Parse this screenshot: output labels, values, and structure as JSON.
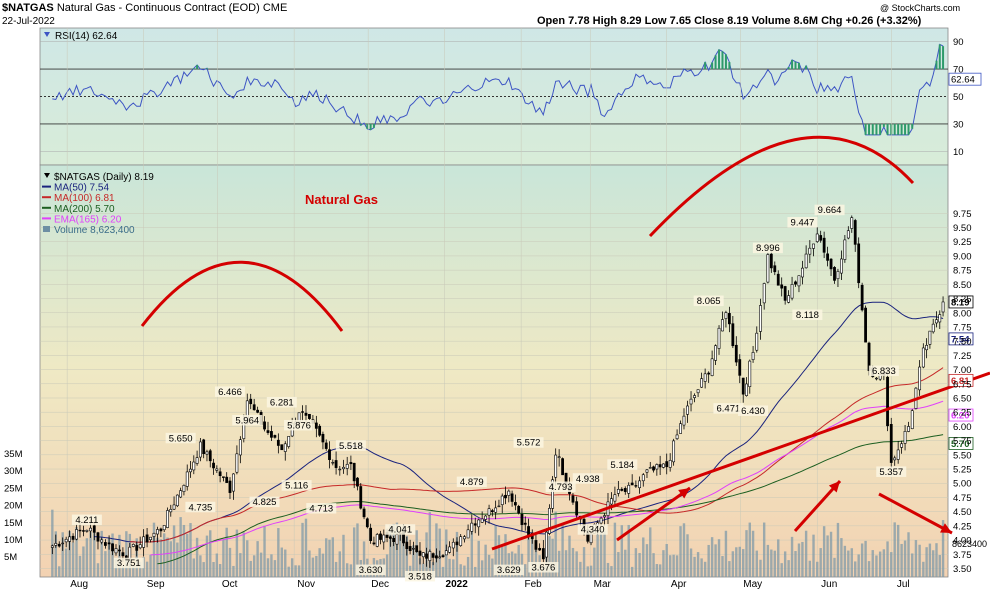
{
  "header": {
    "symbol": "$NATGAS",
    "title_rest": "Natural Gas - Continuous Contract (EOD)",
    "exchange": "CME",
    "date": "22-Jul-2022",
    "copyright": "@ StockCharts.com",
    "quote": "Open 7.78  High 8.29  Low 7.65  Close 8.19  Volume 8.6M  Chg +0.26 (+3.32%)",
    "quote_color": "#000000"
  },
  "rsi_panel": {
    "legend": "RSI(14) 62.64",
    "levels": [
      90,
      70,
      50,
      30,
      10
    ],
    "level_labels": [
      "90",
      "70",
      "50",
      "30",
      "10"
    ],
    "last_label": "62.64",
    "ylim": [
      0,
      100
    ]
  },
  "price_panel": {
    "legend": [
      {
        "text": "$NATGAS (Daily) 8.19",
        "color": "#000000",
        "marker": "triangle"
      },
      {
        "text": "MA(50) 7.54",
        "color": "#1a237e",
        "marker": "line"
      },
      {
        "text": "MA(100) 6.81",
        "color": "#c62828",
        "marker": "line"
      },
      {
        "text": "MA(200) 5.70",
        "color": "#1b5e20",
        "marker": "line"
      },
      {
        "text": "EMA(165) 6.20",
        "color": "#e040fb",
        "marker": "line"
      },
      {
        "text": "Volume 8,623,400",
        "color": "#6d8fa3",
        "marker": "box"
      }
    ],
    "annotation": "Natural Gas",
    "annotation_color": "#d40000",
    "y_ticks": [
      "9.75",
      "9.50",
      "9.25",
      "9.00",
      "8.75",
      "8.50",
      "8.25",
      "8.00",
      "7.75",
      "7.50",
      "7.25",
      "7.00",
      "6.75",
      "6.50",
      "6.25",
      "6.00",
      "5.75",
      "5.50",
      "5.25",
      "5.00",
      "4.75",
      "4.50",
      "4.25",
      "4.00",
      "3.75",
      "3.50"
    ],
    "last_labels": [
      {
        "text": "8.19",
        "color": "#000000"
      },
      {
        "text": "7.54",
        "color": "#1a237e"
      },
      {
        "text": "6.81",
        "color": "#c62828"
      },
      {
        "text": "6.20",
        "color": "#e040fb"
      },
      {
        "text": "5.70",
        "color": "#1b5e20"
      }
    ],
    "volume_ticks": [
      "35M",
      "30M",
      "25M",
      "20M",
      "15M",
      "10M",
      "5M"
    ],
    "volume_last": "8623400",
    "x_ticks": [
      "Aug",
      "Sep",
      "Oct",
      "Nov",
      "Dec",
      "2022",
      "Feb",
      "Mar",
      "Apr",
      "May",
      "Jun",
      "Jul"
    ]
  },
  "chart_data": {
    "type": "line",
    "title": "Natural Gas - Continuous Contract (EOD)",
    "xlabel": "",
    "ylabel": "",
    "ylim": [
      3.35,
      10.6
    ],
    "x": [
      "2021-07-26",
      "2021-08-09",
      "2021-08-18",
      "2021-08-25",
      "2021-09-08",
      "2021-09-16",
      "2021-09-24",
      "2021-10-06",
      "2021-10-13",
      "2021-10-20",
      "2021-10-27",
      "2021-11-03",
      "2021-11-10",
      "2021-11-18",
      "2021-11-24",
      "2021-12-02",
      "2021-12-14",
      "2021-12-22",
      "2022-01-03",
      "2022-01-12",
      "2022-01-19",
      "2022-01-27",
      "2022-02-04",
      "2022-02-10",
      "2022-02-15",
      "2022-02-22",
      "2022-02-28",
      "2022-03-04",
      "2022-03-11",
      "2022-03-18",
      "2022-03-24",
      "2022-04-01",
      "2022-04-08",
      "2022-04-18",
      "2022-04-25",
      "2022-05-02",
      "2022-05-06",
      "2022-05-12",
      "2022-05-19",
      "2022-05-26",
      "2022-06-01",
      "2022-06-08",
      "2022-06-15",
      "2022-06-22",
      "2022-06-28",
      "2022-07-01",
      "2022-07-08",
      "2022-07-14",
      "2022-07-22"
    ],
    "series": [
      {
        "values": [
          3.9,
          4.211,
          3.9,
          3.751,
          4.2,
          4.9,
          5.65,
          4.9,
          6.466,
          5.964,
          5.6,
          6.281,
          5.9,
          5.3,
          5.3,
          4.0,
          4.05,
          3.7,
          3.82,
          4.3,
          4.5,
          4.879,
          4.1,
          3.629,
          5.572,
          4.7,
          4.0,
          4.3,
          4.8,
          4.9,
          5.184,
          5.3,
          6.2,
          7.0,
          8.065,
          6.6,
          7.3,
          8.996,
          8.2,
          8.8,
          9.447,
          8.6,
          9.664,
          7.0,
          6.833,
          5.357,
          6.0,
          7.3,
          8.19
        ]
      }
    ],
    "annotations": [
      "4.211",
      "3.751",
      "5.650",
      "4.735",
      "6.466",
      "5.964",
      "6.281",
      "5.876",
      "4.825",
      "5.116",
      "4.713",
      "5.518",
      "3.630",
      "4.041",
      "3.518",
      "4.879",
      "3.629",
      "5.572",
      "3.676",
      "4.793",
      "4.938",
      "4.340",
      "5.184",
      "8.065",
      "6.471",
      "6.430",
      "8.996",
      "9.447",
      "9.664",
      "8.118",
      "6.833",
      "5.357"
    ],
    "grid": true,
    "legend": "top-left",
    "colors": {
      "price": "#000000",
      "ma50": "#1a237e",
      "ma100": "#c62828",
      "ma200": "#1b5e20",
      "ema165": "#e040fb",
      "volume": "#7f9aa8",
      "annotation": "#d40000"
    }
  }
}
